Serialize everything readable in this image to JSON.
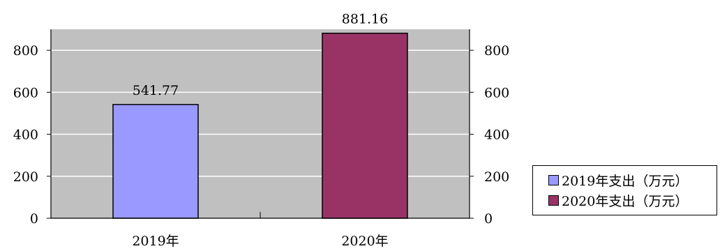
{
  "chart_data": {
    "type": "bar",
    "categories": [
      "2019年",
      "2020年"
    ],
    "series": [
      {
        "name": "2019年支出（万元）",
        "values": [
          541.77,
          null
        ],
        "color": "#9999FF"
      },
      {
        "name": "2020年支出（万元）",
        "values": [
          null,
          881.16
        ],
        "color": "#993366"
      }
    ],
    "data_labels": [
      "541.77",
      "881.16"
    ],
    "y_ticks": [
      "0",
      "200",
      "400",
      "600",
      "800"
    ],
    "ylim": [
      0,
      900
    ],
    "y_axis_left": true,
    "y_axis_right": true,
    "grid": true,
    "grid_color": "#ffffff",
    "plot_background": "#C0C0C0",
    "legend_position": "right"
  },
  "legend": {
    "items": [
      {
        "label": "2019年支出（万元）",
        "color": "#9999FF"
      },
      {
        "label": "2020年支出（万元）",
        "color": "#993366"
      }
    ]
  }
}
